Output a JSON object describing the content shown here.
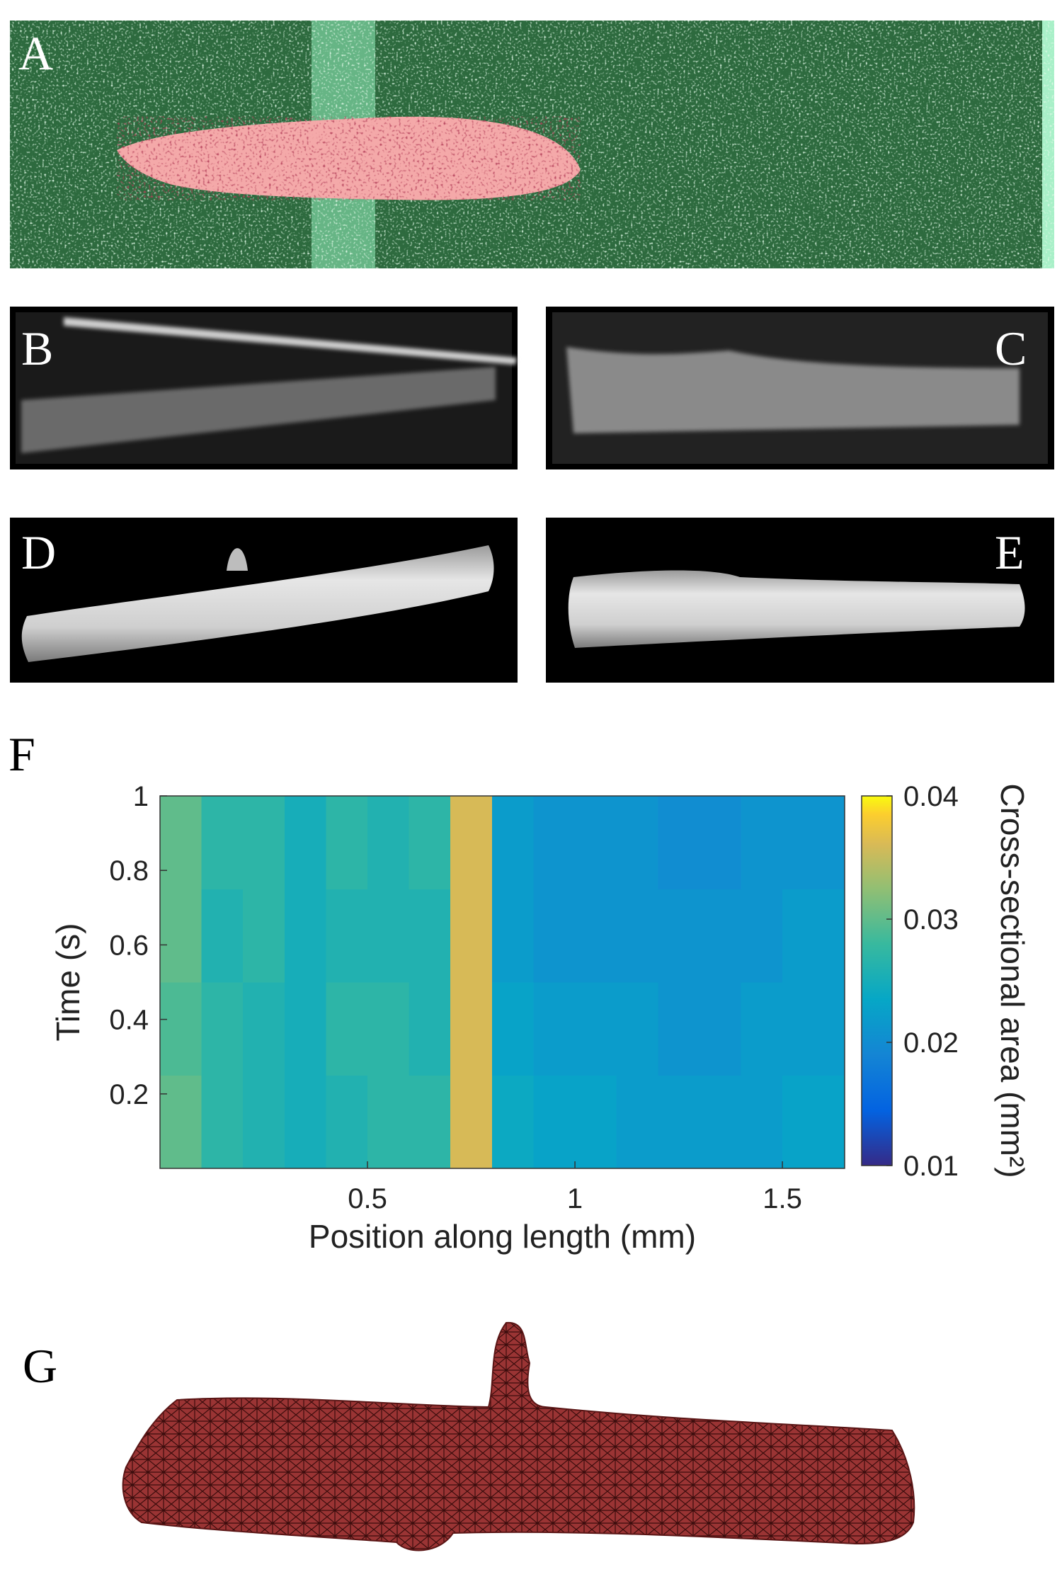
{
  "panel_labels": [
    "A",
    "B",
    "C",
    "D",
    "E",
    "F",
    "G"
  ],
  "chart_data": {
    "type": "heatmap",
    "x_label": "Position along length (mm)",
    "y_label": "Time (s)",
    "colorbar_label": "Cross-sectional area (mm²)",
    "colormap": "parula",
    "xbins": [
      0,
      0.1,
      0.2,
      0.3,
      0.4,
      0.5,
      0.6,
      0.7,
      0.8,
      0.9,
      1.0,
      1.1,
      1.2,
      1.3,
      1.4,
      1.5,
      1.65
    ],
    "ybins": [
      0,
      0.25,
      0.5,
      0.75,
      1
    ],
    "values": [
      [
        0.03,
        0.027,
        0.026,
        0.025,
        0.026,
        0.027,
        0.027,
        0.036,
        0.024,
        0.023,
        0.023,
        0.022,
        0.022,
        0.022,
        0.022,
        0.023
      ],
      [
        0.029,
        0.027,
        0.026,
        0.025,
        0.027,
        0.027,
        0.026,
        0.036,
        0.023,
        0.022,
        0.022,
        0.022,
        0.021,
        0.021,
        0.022,
        0.022
      ],
      [
        0.03,
        0.026,
        0.027,
        0.025,
        0.026,
        0.026,
        0.026,
        0.036,
        0.022,
        0.021,
        0.021,
        0.021,
        0.021,
        0.021,
        0.021,
        0.022
      ],
      [
        0.03,
        0.027,
        0.027,
        0.025,
        0.027,
        0.026,
        0.027,
        0.036,
        0.022,
        0.021,
        0.021,
        0.021,
        0.02,
        0.02,
        0.021,
        0.021
      ]
    ],
    "xlim": [
      0,
      1.65
    ],
    "xticks": [
      0.5,
      1,
      1.5
    ],
    "ylim": [
      0,
      1
    ],
    "yticks": [
      0.2,
      0.4,
      0.6,
      0.8,
      1
    ],
    "clim": [
      0.01,
      0.04
    ],
    "cticks": [
      0.01,
      0.02,
      0.03,
      0.04
    ]
  }
}
